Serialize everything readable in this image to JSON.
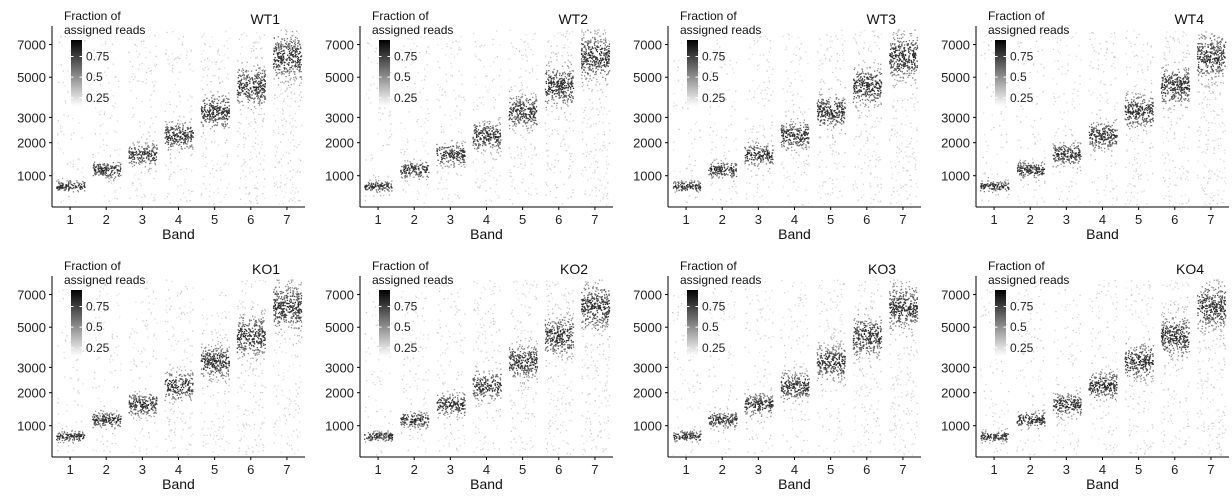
{
  "chart_data": [
    {
      "type": "scatter",
      "sample": "WT1",
      "xlabel": "Band",
      "legend_title": [
        "Fraction of",
        "assigned reads"
      ],
      "legend_ticks": [
        "0.75",
        "0.5",
        "0.25"
      ],
      "legend_values": [
        0.75,
        0.5,
        0.25
      ],
      "categories": [
        "1",
        "2",
        "3",
        "4",
        "5",
        "6",
        "7"
      ],
      "y_ticks": [
        1000,
        2000,
        3000,
        5000,
        7000
      ],
      "ylim": [
        400,
        8000
      ],
      "y_scale": "sqrt",
      "band_median_length": [
        750,
        1150,
        1600,
        2250,
        3250,
        4500,
        6200
      ],
      "color_scale": [
        "#ffffff",
        "#000000"
      ],
      "legend_position": "top-left"
    },
    {
      "type": "scatter",
      "sample": "WT2",
      "xlabel": "Band",
      "legend_title": [
        "Fraction of",
        "assigned reads"
      ],
      "legend_ticks": [
        "0.75",
        "0.5",
        "0.25"
      ],
      "legend_values": [
        0.75,
        0.5,
        0.25
      ],
      "categories": [
        "1",
        "2",
        "3",
        "4",
        "5",
        "6",
        "7"
      ],
      "y_ticks": [
        1000,
        2000,
        3000,
        5000,
        7000
      ],
      "ylim": [
        400,
        8000
      ],
      "y_scale": "sqrt",
      "band_median_length": [
        750,
        1150,
        1600,
        2250,
        3250,
        4500,
        6200
      ],
      "color_scale": [
        "#ffffff",
        "#000000"
      ],
      "legend_position": "top-left"
    },
    {
      "type": "scatter",
      "sample": "WT3",
      "xlabel": "Band",
      "legend_title": [
        "Fraction of",
        "assigned reads"
      ],
      "legend_ticks": [
        "0.75",
        "0.5",
        "0.25"
      ],
      "legend_values": [
        0.75,
        0.5,
        0.25
      ],
      "categories": [
        "1",
        "2",
        "3",
        "4",
        "5",
        "6",
        "7"
      ],
      "y_ticks": [
        1000,
        2000,
        3000,
        5000,
        7000
      ],
      "ylim": [
        400,
        8000
      ],
      "y_scale": "sqrt",
      "band_median_length": [
        750,
        1150,
        1600,
        2250,
        3250,
        4500,
        6200
      ],
      "color_scale": [
        "#ffffff",
        "#000000"
      ],
      "legend_position": "top-left"
    },
    {
      "type": "scatter",
      "sample": "WT4",
      "xlabel": "Band",
      "legend_title": [
        "Fraction of",
        "assigned reads"
      ],
      "legend_ticks": [
        "0.75",
        "0.5",
        "0.25"
      ],
      "legend_values": [
        0.75,
        0.5,
        0.25
      ],
      "categories": [
        "1",
        "2",
        "3",
        "4",
        "5",
        "6",
        "7"
      ],
      "y_ticks": [
        1000,
        2000,
        3000,
        5000,
        7000
      ],
      "ylim": [
        400,
        8000
      ],
      "y_scale": "sqrt",
      "band_median_length": [
        750,
        1150,
        1600,
        2250,
        3250,
        4500,
        6200
      ],
      "color_scale": [
        "#ffffff",
        "#000000"
      ],
      "legend_position": "top-left"
    },
    {
      "type": "scatter",
      "sample": "KO1",
      "xlabel": "Band",
      "legend_title": [
        "Fraction of",
        "assigned reads"
      ],
      "legend_ticks": [
        "0.75",
        "0.5",
        "0.25"
      ],
      "legend_values": [
        0.75,
        0.5,
        0.25
      ],
      "categories": [
        "1",
        "2",
        "3",
        "4",
        "5",
        "6",
        "7"
      ],
      "y_ticks": [
        1000,
        2000,
        3000,
        5000,
        7000
      ],
      "ylim": [
        400,
        8000
      ],
      "y_scale": "sqrt",
      "band_median_length": [
        750,
        1150,
        1600,
        2250,
        3250,
        4500,
        6200
      ],
      "color_scale": [
        "#ffffff",
        "#000000"
      ],
      "legend_position": "top-left"
    },
    {
      "type": "scatter",
      "sample": "KO2",
      "xlabel": "Band",
      "legend_title": [
        "Fraction of",
        "assigned reads"
      ],
      "legend_ticks": [
        "0.75",
        "0.5",
        "0.25"
      ],
      "legend_values": [
        0.75,
        0.5,
        0.25
      ],
      "categories": [
        "1",
        "2",
        "3",
        "4",
        "5",
        "6",
        "7"
      ],
      "y_ticks": [
        1000,
        2000,
        3000,
        5000,
        7000
      ],
      "ylim": [
        400,
        8000
      ],
      "y_scale": "sqrt",
      "band_median_length": [
        750,
        1150,
        1600,
        2250,
        3250,
        4500,
        6200
      ],
      "color_scale": [
        "#ffffff",
        "#000000"
      ],
      "legend_position": "top-left"
    },
    {
      "type": "scatter",
      "sample": "KO3",
      "xlabel": "Band",
      "legend_title": [
        "Fraction of",
        "assigned reads"
      ],
      "legend_ticks": [
        "0.75",
        "0.5",
        "0.25"
      ],
      "legend_values": [
        0.75,
        0.5,
        0.25
      ],
      "categories": [
        "1",
        "2",
        "3",
        "4",
        "5",
        "6",
        "7"
      ],
      "y_ticks": [
        1000,
        2000,
        3000,
        5000,
        7000
      ],
      "ylim": [
        400,
        8000
      ],
      "y_scale": "sqrt",
      "band_median_length": [
        750,
        1150,
        1600,
        2250,
        3250,
        4500,
        6200
      ],
      "color_scale": [
        "#ffffff",
        "#000000"
      ],
      "legend_position": "top-left"
    },
    {
      "type": "scatter",
      "sample": "KO4",
      "xlabel": "Band",
      "legend_title": [
        "Fraction of",
        "assigned reads"
      ],
      "legend_ticks": [
        "0.75",
        "0.5",
        "0.25"
      ],
      "legend_values": [
        0.75,
        0.5,
        0.25
      ],
      "categories": [
        "1",
        "2",
        "3",
        "4",
        "5",
        "6",
        "7"
      ],
      "y_ticks": [
        1000,
        2000,
        3000,
        5000,
        7000
      ],
      "ylim": [
        400,
        8000
      ],
      "y_scale": "sqrt",
      "band_median_length": [
        750,
        1150,
        1600,
        2250,
        3250,
        4500,
        6200
      ],
      "color_scale": [
        "#ffffff",
        "#000000"
      ],
      "legend_position": "top-left"
    }
  ]
}
